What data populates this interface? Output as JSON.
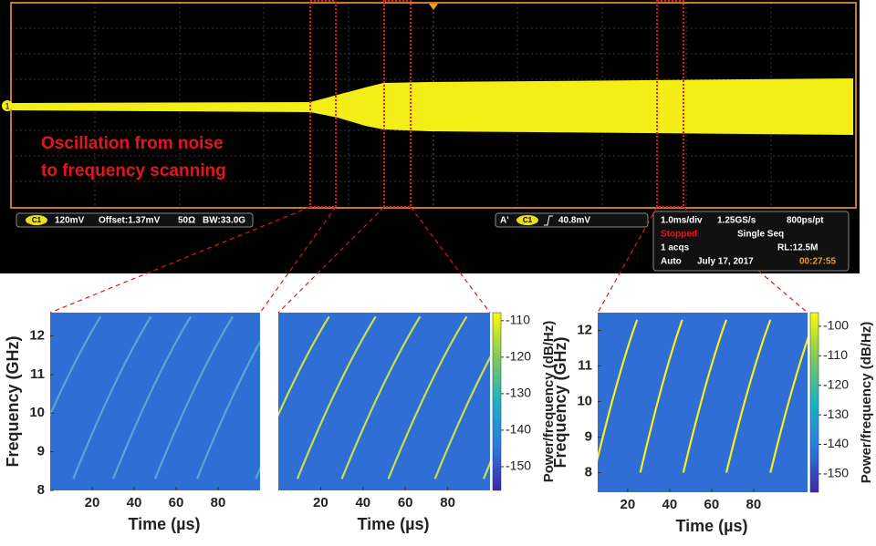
{
  "scope": {
    "channel": "C1",
    "scale": "120mV",
    "offset": "Offset:1.37mV",
    "impedance": "50Ω",
    "bandwidth": "BW:33.0G",
    "trigger_prefix": "A'",
    "trigger_source": "C1",
    "trigger_level": "40.8mV",
    "timebase": "1.0ms/div",
    "sample_rate": "1.25GS/s",
    "resolution": "800ps/pt",
    "state": "Stopped",
    "mode": "Single Seq",
    "acqs": "1 acqs",
    "record_length": "RL:12.5M",
    "trigger_mode": "Auto",
    "date": "July 17, 2017",
    "time": "00:27:55",
    "channel_marker": "1"
  },
  "annotation": [
    "Oscillation from noise",
    "to frequency scanning"
  ],
  "chart_data": [
    {
      "type": "spectrogram",
      "xlabel": "Time (µs)",
      "ylabel": "Frequency (GHz)",
      "xlim": [
        0,
        100
      ],
      "ylim": [
        8,
        12.6
      ],
      "xticks": [
        20,
        40,
        60,
        80
      ],
      "yticks": [
        8,
        9,
        10,
        11,
        12
      ],
      "background": "#2f6ed4",
      "color": "#5aa6d0",
      "sweeps": [
        {
          "x": [
            -13,
            24
          ],
          "y": [
            8.3,
            12.5
          ]
        },
        {
          "x": [
            11,
            48
          ],
          "y": [
            8.3,
            12.5
          ]
        },
        {
          "x": [
            30,
            67
          ],
          "y": [
            8.3,
            12.5
          ]
        },
        {
          "x": [
            50,
            87
          ],
          "y": [
            8.3,
            12.5
          ]
        },
        {
          "x": [
            70,
            107
          ],
          "y": [
            8.3,
            12.5
          ]
        },
        {
          "x": [
            98,
            135
          ],
          "y": [
            8.3,
            12.5
          ]
        }
      ]
    },
    {
      "type": "spectrogram",
      "xlabel": "Time (µs)",
      "xlim": [
        0,
        100
      ],
      "ylim": [
        8,
        12.6
      ],
      "xticks": [
        20,
        40,
        60,
        80
      ],
      "background": "#2f6ed4",
      "color": "#c8e04a",
      "sweeps": [
        {
          "x": [
            -13,
            24
          ],
          "y": [
            8.3,
            12.5
          ]
        },
        {
          "x": [
            9,
            46
          ],
          "y": [
            8.3,
            12.5
          ]
        },
        {
          "x": [
            30,
            67
          ],
          "y": [
            8.3,
            12.5
          ]
        },
        {
          "x": [
            52,
            89
          ],
          "y": [
            8.3,
            12.5
          ]
        },
        {
          "x": [
            74,
            111
          ],
          "y": [
            8.3,
            12.5
          ]
        },
        {
          "x": [
            97,
            134
          ],
          "y": [
            8.3,
            12.5
          ]
        }
      ],
      "colorbar": {
        "label": "Power/frequency (dB/Hz)",
        "clim": [
          -156.5,
          -107.8
        ],
        "ticks": [
          -110,
          -120,
          -130,
          -140,
          -150
        ]
      }
    },
    {
      "type": "spectrogram",
      "xlabel": "Time (µs)",
      "ylabel": "Frequency (GHz)",
      "xlim": [
        5.7,
        105.7
      ],
      "ylim": [
        7.45,
        12.5
      ],
      "xticks": [
        20,
        40,
        60,
        80
      ],
      "yticks": [
        8,
        9,
        10,
        11,
        12
      ],
      "background": "#2f6ed4",
      "color": "#f6f01a",
      "sweeps": [
        {
          "x": [
            4,
            24.5
          ],
          "y": [
            8,
            12.3
          ]
        },
        {
          "x": [
            26,
            46
          ],
          "y": [
            8,
            12.3
          ]
        },
        {
          "x": [
            46.5,
            67
          ],
          "y": [
            8,
            12.3
          ]
        },
        {
          "x": [
            67,
            88
          ],
          "y": [
            8,
            12.3
          ]
        },
        {
          "x": [
            88,
            109
          ],
          "y": [
            8,
            12.3
          ]
        }
      ],
      "colorbar": {
        "label": "Power/frequency (dB/Hz)",
        "clim": [
          -156.2,
          -95.4
        ],
        "ticks": [
          -100,
          -110,
          -120,
          -130,
          -140,
          -150
        ]
      }
    }
  ]
}
